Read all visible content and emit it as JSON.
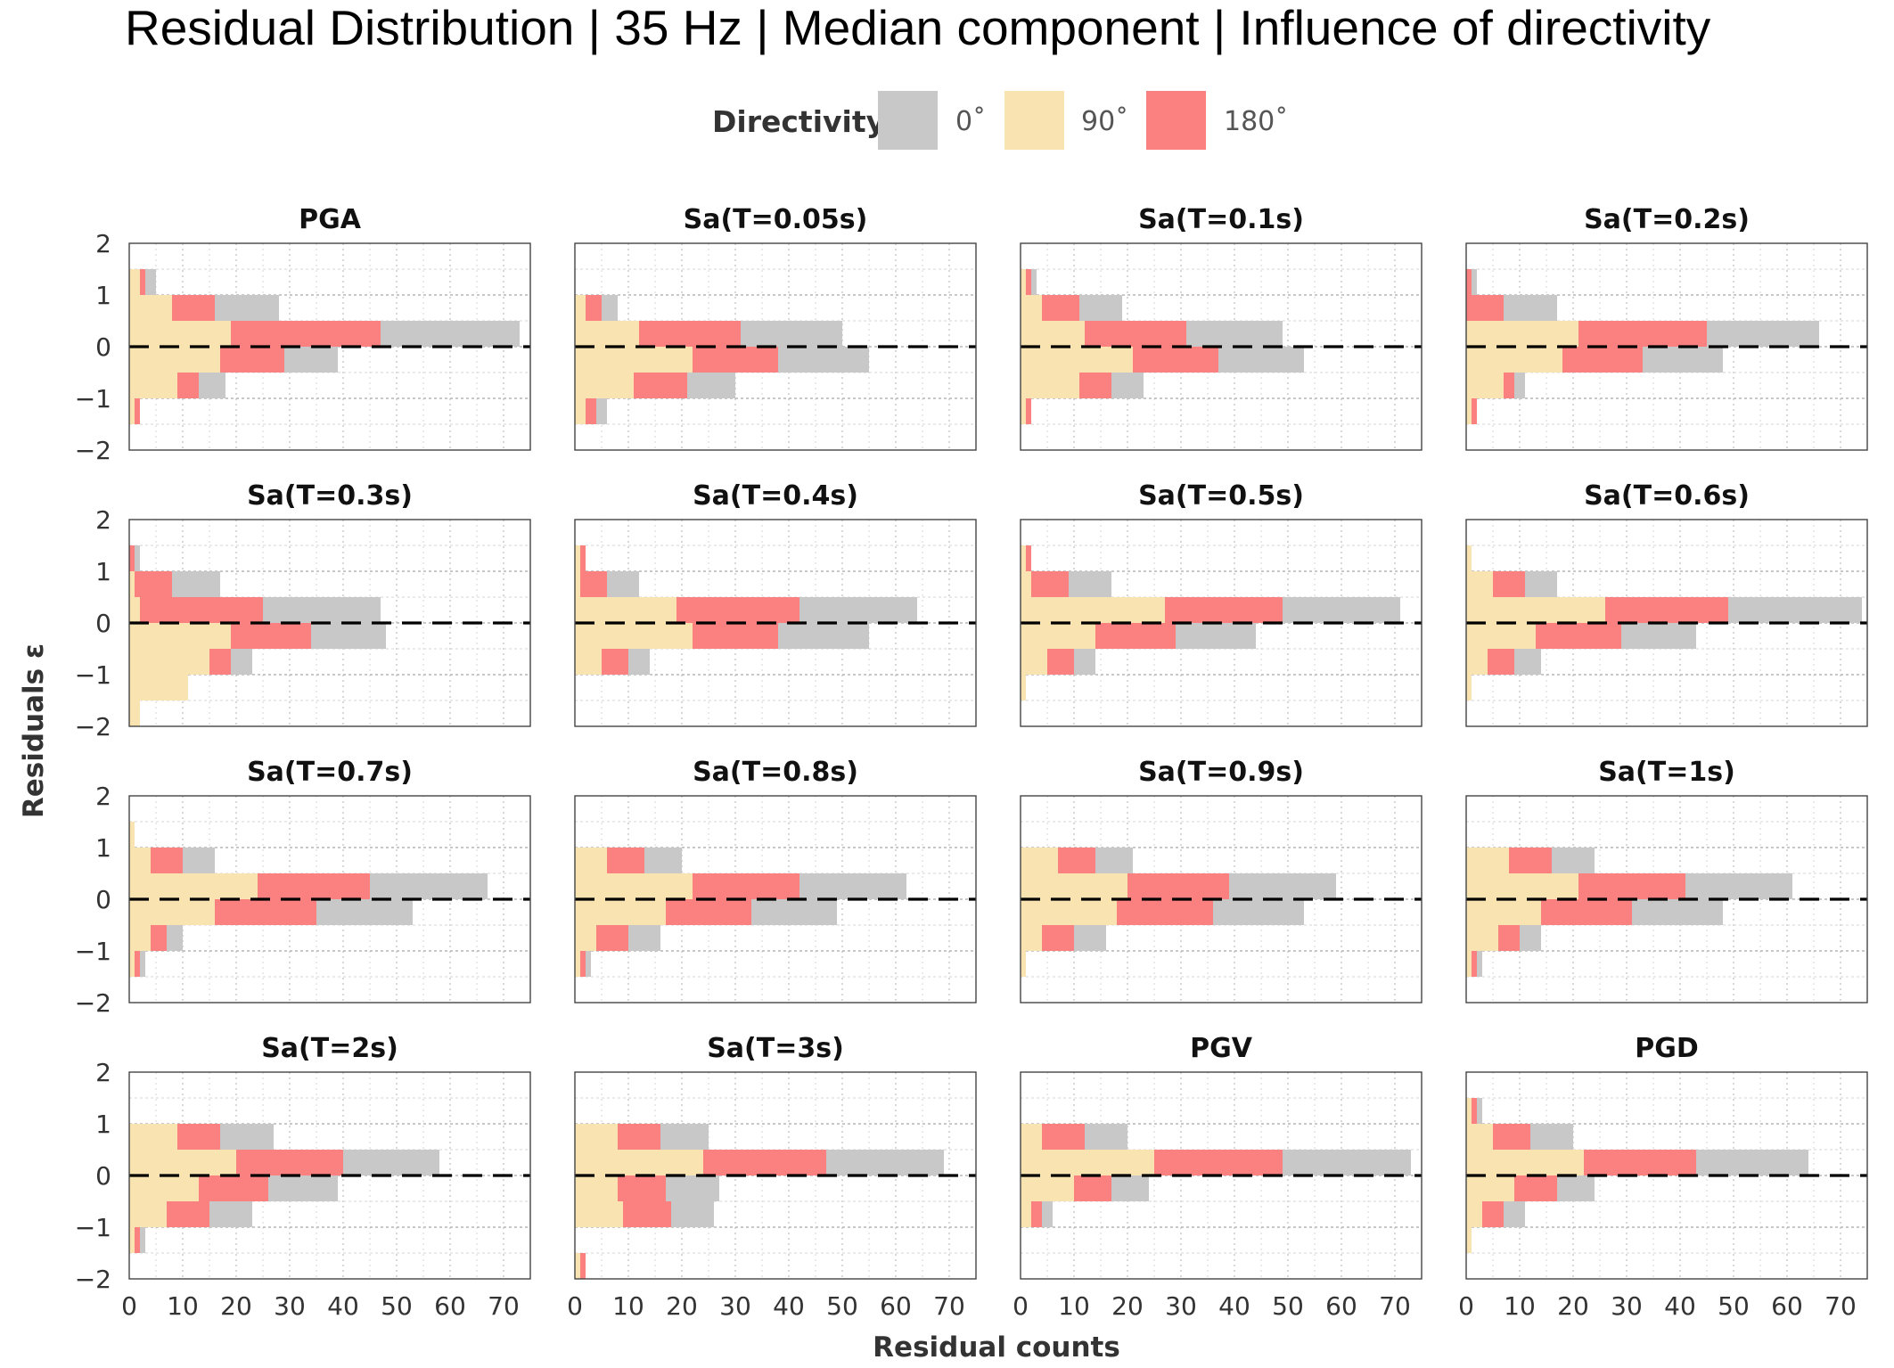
{
  "title": "Residual Distribution | 35 Hz | Median component | Influence of directivity",
  "legend": {
    "title": "Directivity",
    "entries": [
      {
        "label": "0˚",
        "color": "#c8c8c8"
      },
      {
        "label": "90˚",
        "color": "#f9e3b0"
      },
      {
        "label": "180˚",
        "color": "#fb8080"
      }
    ]
  },
  "axes": {
    "xlabel": "Residual counts",
    "ylabel": "Residuals  ε",
    "x_ticks": [
      "0",
      "10",
      "20",
      "30",
      "40",
      "50",
      "60",
      "70"
    ],
    "y_ticks": [
      "2",
      "1",
      "0",
      "−1",
      "−2"
    ]
  },
  "chart_data": {
    "type": "bar",
    "orientation": "horizontal-stacked",
    "bins": [
      [
        -2,
        -1.5
      ],
      [
        -1.5,
        -1
      ],
      [
        -1,
        -0.5
      ],
      [
        -0.5,
        0
      ],
      [
        0,
        0.5
      ],
      [
        0.5,
        1
      ],
      [
        1,
        1.5
      ],
      [
        1.5,
        2
      ]
    ],
    "series_order": [
      "90˚",
      "180˚",
      "0˚"
    ],
    "xlim": [
      0,
      75
    ],
    "ylim": [
      -2,
      2
    ],
    "reference_line_y": 0,
    "grid": true,
    "legend_position": "top",
    "panels": [
      {
        "title": "PGA",
        "series": [
          {
            "name": "90˚",
            "values": [
              0,
              1,
              9,
              17,
              19,
              8,
              2,
              0
            ]
          },
          {
            "name": "180˚",
            "values": [
              0,
              1,
              4,
              12,
              28,
              8,
              1,
              0
            ]
          },
          {
            "name": "0˚",
            "values": [
              0,
              0,
              5,
              10,
              26,
              12,
              2,
              0
            ]
          }
        ]
      },
      {
        "title": "Sa(T=0.05s)",
        "series": [
          {
            "name": "90˚",
            "values": [
              0,
              2,
              11,
              22,
              12,
              2,
              0,
              0
            ]
          },
          {
            "name": "180˚",
            "values": [
              0,
              2,
              10,
              16,
              19,
              3,
              0,
              0
            ]
          },
          {
            "name": "0˚",
            "values": [
              0,
              2,
              9,
              17,
              19,
              3,
              0,
              0
            ]
          }
        ]
      },
      {
        "title": "Sa(T=0.1s)",
        "series": [
          {
            "name": "90˚",
            "values": [
              0,
              1,
              11,
              21,
              12,
              4,
              1,
              0
            ]
          },
          {
            "name": "180˚",
            "values": [
              0,
              1,
              6,
              16,
              19,
              7,
              1,
              0
            ]
          },
          {
            "name": "0˚",
            "values": [
              0,
              0,
              6,
              16,
              18,
              8,
              1,
              0
            ]
          }
        ]
      },
      {
        "title": "Sa(T=0.2s)",
        "series": [
          {
            "name": "90˚",
            "values": [
              0,
              1,
              7,
              18,
              21,
              0,
              0,
              0
            ]
          },
          {
            "name": "180˚",
            "values": [
              0,
              1,
              2,
              15,
              24,
              7,
              1,
              0
            ]
          },
          {
            "name": "0˚",
            "values": [
              0,
              0,
              2,
              15,
              21,
              10,
              1,
              0
            ]
          }
        ]
      },
      {
        "title": "Sa(T=0.3s)",
        "series": [
          {
            "name": "90˚",
            "values": [
              2,
              11,
              15,
              19,
              2,
              1,
              0,
              0
            ]
          },
          {
            "name": "180˚",
            "values": [
              0,
              0,
              4,
              15,
              23,
              7,
              1,
              0
            ]
          },
          {
            "name": "0˚",
            "values": [
              0,
              0,
              4,
              14,
              22,
              9,
              1,
              0
            ]
          }
        ]
      },
      {
        "title": "Sa(T=0.4s)",
        "series": [
          {
            "name": "90˚",
            "values": [
              0,
              0,
              5,
              22,
              19,
              1,
              1,
              0
            ]
          },
          {
            "name": "180˚",
            "values": [
              0,
              0,
              5,
              16,
              23,
              5,
              1,
              0
            ]
          },
          {
            "name": "0˚",
            "values": [
              0,
              0,
              4,
              17,
              22,
              6,
              0,
              0
            ]
          }
        ]
      },
      {
        "title": "Sa(T=0.5s)",
        "series": [
          {
            "name": "90˚",
            "values": [
              0,
              1,
              5,
              14,
              27,
              2,
              1,
              0
            ]
          },
          {
            "name": "180˚",
            "values": [
              0,
              0,
              5,
              15,
              22,
              7,
              1,
              0
            ]
          },
          {
            "name": "0˚",
            "values": [
              0,
              0,
              4,
              15,
              22,
              8,
              0,
              0
            ]
          }
        ]
      },
      {
        "title": "Sa(T=0.6s)",
        "series": [
          {
            "name": "90˚",
            "values": [
              0,
              1,
              4,
              13,
              26,
              5,
              1,
              0
            ]
          },
          {
            "name": "180˚",
            "values": [
              0,
              0,
              5,
              16,
              23,
              6,
              0,
              0
            ]
          },
          {
            "name": "0˚",
            "values": [
              0,
              0,
              5,
              14,
              25,
              6,
              0,
              0
            ]
          }
        ]
      },
      {
        "title": "Sa(T=0.7s)",
        "series": [
          {
            "name": "90˚",
            "values": [
              0,
              1,
              4,
              16,
              24,
              4,
              1,
              0
            ]
          },
          {
            "name": "180˚",
            "values": [
              0,
              1,
              3,
              19,
              21,
              6,
              0,
              0
            ]
          },
          {
            "name": "0˚",
            "values": [
              0,
              1,
              3,
              18,
              22,
              6,
              0,
              0
            ]
          }
        ]
      },
      {
        "title": "Sa(T=0.8s)",
        "series": [
          {
            "name": "90˚",
            "values": [
              0,
              1,
              4,
              17,
              22,
              6,
              0,
              0
            ]
          },
          {
            "name": "180˚",
            "values": [
              0,
              1,
              6,
              16,
              20,
              7,
              0,
              0
            ]
          },
          {
            "name": "0˚",
            "values": [
              0,
              1,
              6,
              16,
              20,
              7,
              0,
              0
            ]
          }
        ]
      },
      {
        "title": "Sa(T=0.9s)",
        "series": [
          {
            "name": "90˚",
            "values": [
              0,
              1,
              4,
              18,
              20,
              7,
              0,
              0
            ]
          },
          {
            "name": "180˚",
            "values": [
              0,
              0,
              6,
              18,
              19,
              7,
              0,
              0
            ]
          },
          {
            "name": "0˚",
            "values": [
              0,
              0,
              6,
              17,
              20,
              7,
              0,
              0
            ]
          }
        ]
      },
      {
        "title": "Sa(T=1s)",
        "series": [
          {
            "name": "90˚",
            "values": [
              0,
              1,
              6,
              14,
              21,
              8,
              0,
              0
            ]
          },
          {
            "name": "180˚",
            "values": [
              0,
              1,
              4,
              17,
              20,
              8,
              0,
              0
            ]
          },
          {
            "name": "0˚",
            "values": [
              0,
              1,
              4,
              17,
              20,
              8,
              0,
              0
            ]
          }
        ]
      },
      {
        "title": "Sa(T=2s)",
        "series": [
          {
            "name": "90˚",
            "values": [
              0,
              1,
              7,
              13,
              20,
              9,
              0,
              0
            ]
          },
          {
            "name": "180˚",
            "values": [
              0,
              1,
              8,
              13,
              20,
              8,
              0,
              0
            ]
          },
          {
            "name": "0˚",
            "values": [
              0,
              1,
              8,
              13,
              18,
              10,
              0,
              0
            ]
          }
        ]
      },
      {
        "title": "Sa(T=3s)",
        "series": [
          {
            "name": "90˚",
            "values": [
              1,
              0,
              9,
              8,
              24,
              8,
              0,
              0
            ]
          },
          {
            "name": "180˚",
            "values": [
              1,
              0,
              9,
              9,
              23,
              8,
              0,
              0
            ]
          },
          {
            "name": "0˚",
            "values": [
              0,
              0,
              8,
              10,
              22,
              9,
              0,
              0
            ]
          }
        ]
      },
      {
        "title": "PGV",
        "series": [
          {
            "name": "90˚",
            "values": [
              0,
              0,
              2,
              10,
              25,
              4,
              0,
              0
            ]
          },
          {
            "name": "180˚",
            "values": [
              0,
              0,
              2,
              7,
              24,
              8,
              0,
              0
            ]
          },
          {
            "name": "0˚",
            "values": [
              0,
              0,
              2,
              7,
              24,
              8,
              0,
              0
            ]
          }
        ]
      },
      {
        "title": "PGD",
        "series": [
          {
            "name": "90˚",
            "values": [
              0,
              1,
              3,
              9,
              22,
              5,
              1,
              0
            ]
          },
          {
            "name": "180˚",
            "values": [
              0,
              0,
              4,
              8,
              21,
              7,
              1,
              0
            ]
          },
          {
            "name": "0˚",
            "values": [
              0,
              0,
              4,
              7,
              21,
              8,
              1,
              0
            ]
          }
        ]
      }
    ]
  }
}
